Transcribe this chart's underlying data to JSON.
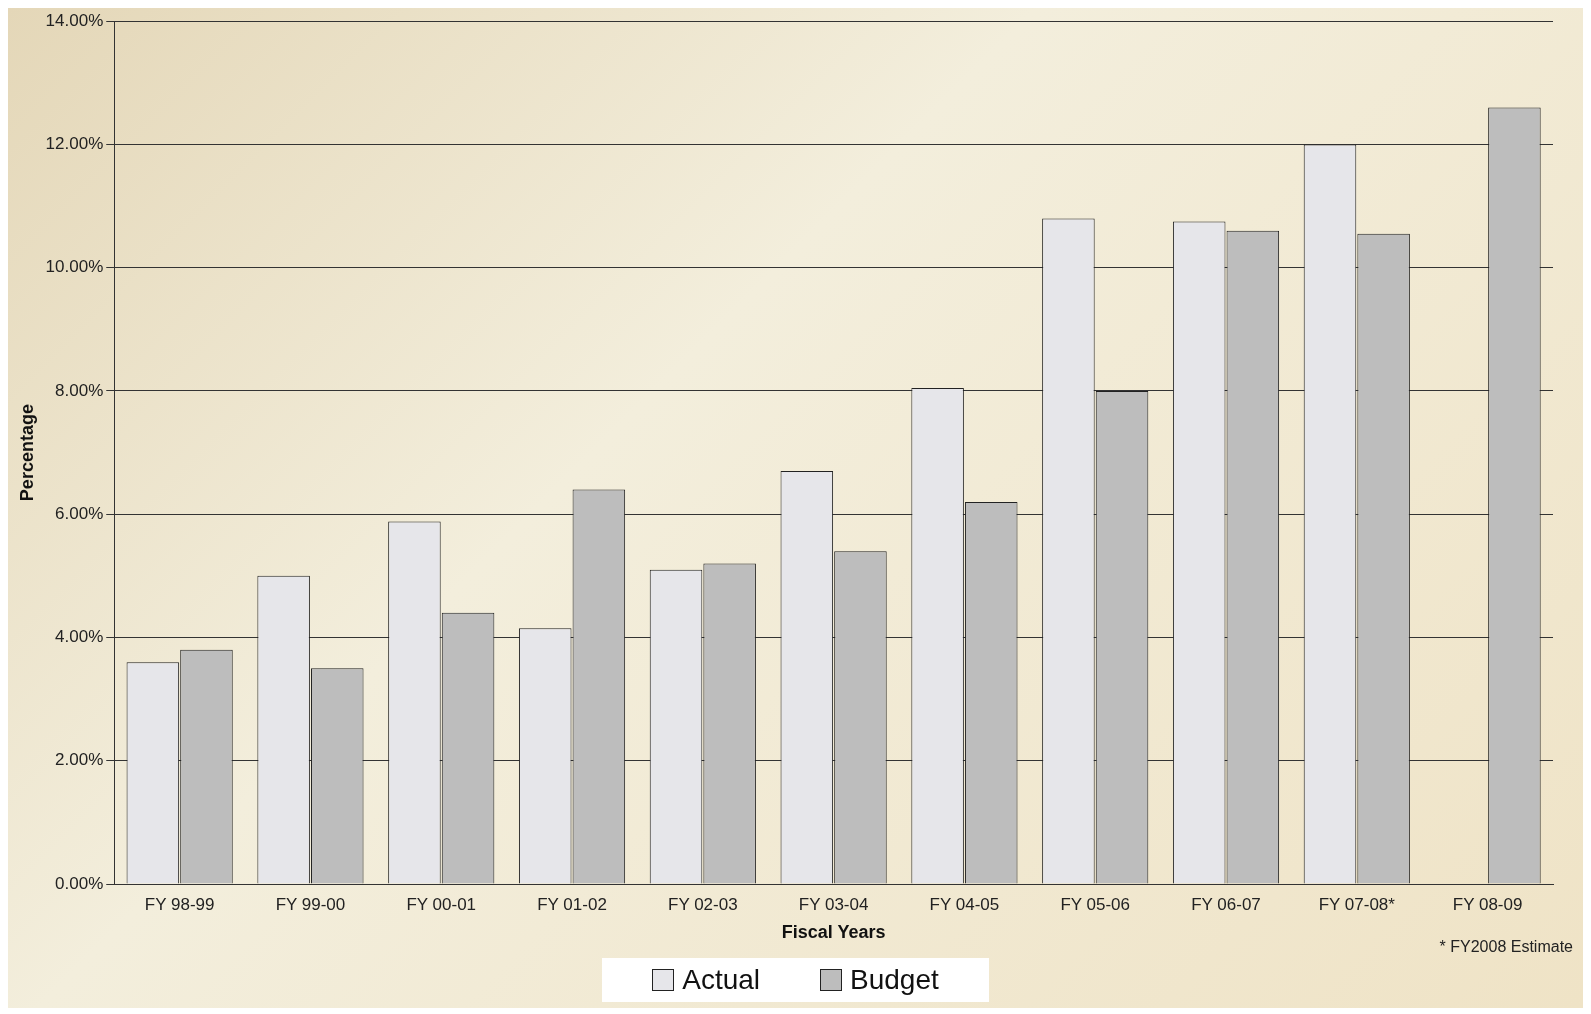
{
  "chart_data": {
    "type": "bar",
    "xlabel": "Fiscal Years",
    "ylabel": "Percentage",
    "categories": [
      "FY 98-99",
      "FY 99-00",
      "FY 00-01",
      "FY 01-02",
      "FY 02-03",
      "FY 03-04",
      "FY 04-05",
      "FY 05-06",
      "FY 06-07",
      "FY 07-08*",
      "FY 08-09"
    ],
    "series": [
      {
        "name": "Actual",
        "color": "#e6e6ea",
        "values": [
          3.6,
          5.0,
          5.88,
          4.15,
          5.1,
          6.7,
          8.05,
          10.8,
          10.75,
          12.0,
          null
        ]
      },
      {
        "name": "Budget",
        "color": "#bdbdbd",
        "values": [
          3.8,
          3.5,
          4.4,
          6.4,
          5.2,
          5.4,
          6.2,
          8.0,
          10.6,
          10.55,
          12.6
        ]
      }
    ],
    "ylim": [
      0,
      14
    ],
    "yticks": [
      {
        "value": 0,
        "label": "0.00%"
      },
      {
        "value": 2,
        "label": "2.00%"
      },
      {
        "value": 4,
        "label": "4.00%"
      },
      {
        "value": 6,
        "label": "6.00%"
      },
      {
        "value": 8,
        "label": "8.00%"
      },
      {
        "value": 10,
        "label": "10.00%"
      },
      {
        "value": 12,
        "label": "12.00%"
      },
      {
        "value": 14,
        "label": "14.00%"
      }
    ],
    "grid": "y",
    "legend": "bottom",
    "annotations": [
      "* FY2008 Estimate"
    ]
  }
}
